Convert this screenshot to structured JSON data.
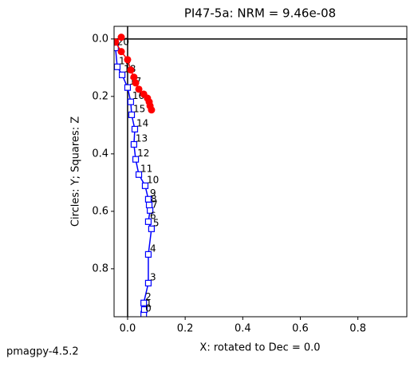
{
  "chart_data": {
    "type": "zijderveld",
    "title": "PI47-5a: NRM =  9.46e-08",
    "x_label": "X: rotated to Dec =     0.0",
    "y_label": "Circles: Y; Squares: Z",
    "footer": "pmagpy-4.5.2",
    "xlim": [
      -0.047,
      0.97
    ],
    "ylim": [
      0.967,
      -0.044
    ],
    "xticks": [
      {
        "value": 0,
        "label": "0.0"
      },
      {
        "value": 0.2,
        "label": "0.2"
      },
      {
        "value": 0.4,
        "label": "0.4"
      },
      {
        "value": 0.6,
        "label": "0.6"
      },
      {
        "value": 0.8,
        "label": "0.8"
      }
    ],
    "yticks": [
      {
        "value": 0,
        "label": "0.0"
      },
      {
        "value": 0.2,
        "label": "0.2"
      },
      {
        "value": 0.4,
        "label": "0.4"
      },
      {
        "value": 0.6,
        "label": "0.6"
      },
      {
        "value": 0.8,
        "label": "0.8"
      }
    ],
    "series": [
      {
        "marker": "square",
        "color": "#0000ff",
        "x": [
          0.056,
          0.058,
          0.056,
          0.072,
          0.072,
          0.083,
          0.072,
          0.078,
          0.075,
          0.072,
          0.061,
          0.039,
          0.028,
          0.022,
          0.025,
          0.014,
          0.011,
          0.0,
          -0.019,
          -0.036,
          -0.042
        ],
        "values": [
          0.958,
          0.942,
          0.919,
          0.85,
          0.75,
          0.661,
          0.636,
          0.597,
          0.578,
          0.558,
          0.511,
          0.472,
          0.419,
          0.367,
          0.314,
          0.264,
          0.219,
          0.169,
          0.125,
          0.097,
          0.031
        ],
        "labels": [
          "0",
          "1",
          "2",
          "3",
          "4",
          "5",
          "6",
          "7",
          "8",
          "9",
          "10",
          "11",
          "12",
          "13",
          "14",
          "15",
          "16",
          "17",
          "18",
          "19",
          "20"
        ]
      },
      {
        "marker": "circle",
        "color": "#ff0000",
        "x": [
          -0.022,
          -0.042,
          -0.022,
          0.0,
          0.011,
          0.022,
          0.028,
          0.039,
          0.056,
          0.069,
          0.075,
          0.078,
          0.083
        ],
        "values": [
          -0.006,
          0.011,
          0.044,
          0.072,
          0.108,
          0.133,
          0.153,
          0.175,
          0.192,
          0.206,
          0.219,
          0.233,
          0.247
        ]
      }
    ]
  }
}
